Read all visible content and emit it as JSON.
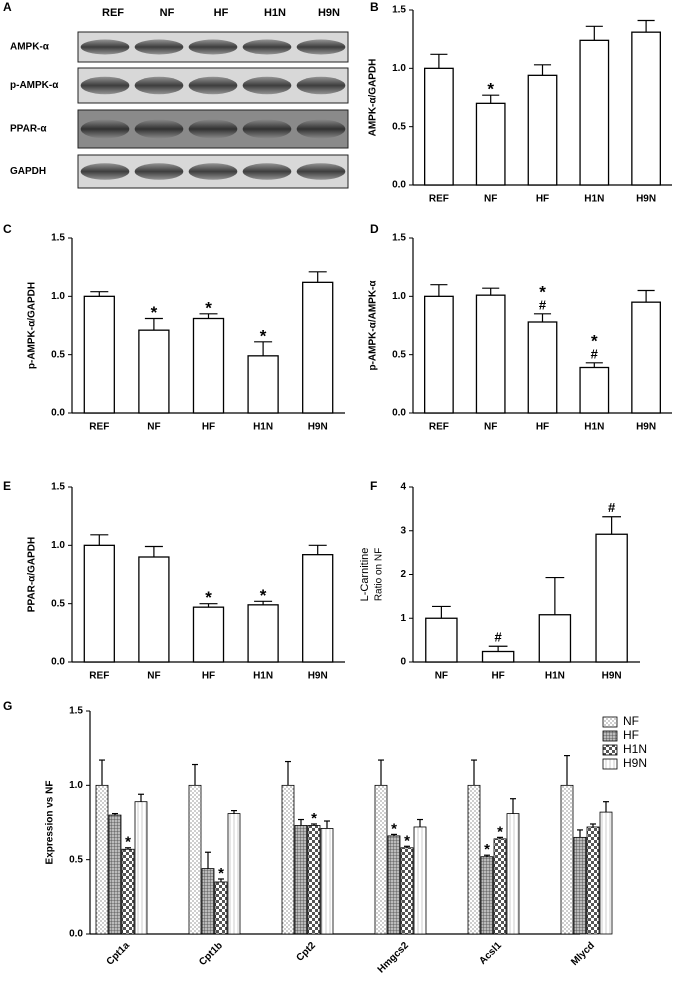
{
  "chart_data": [
    {
      "type": "blot",
      "panel": "A",
      "categories": [
        "REF",
        "NF",
        "HF",
        "H1N",
        "H9N"
      ],
      "bands": [
        "AMPK-α",
        "p-AMPK-α",
        "PPAR-α",
        "GAPDH"
      ]
    },
    {
      "type": "bar",
      "panel": "B",
      "ylabel": "AMPK-α/GAPDH",
      "categories": [
        "REF",
        "NF",
        "HF",
        "H1N",
        "H9N"
      ],
      "values": [
        1.0,
        0.7,
        0.94,
        1.24,
        1.31
      ],
      "errors": [
        0.12,
        0.07,
        0.09,
        0.12,
        0.1
      ],
      "annotations": [
        null,
        [
          "*"
        ],
        null,
        null,
        null
      ],
      "ylim": [
        0,
        1.5
      ],
      "yticks": [
        {
          "value": 0,
          "label": "0.0"
        },
        0.5,
        {
          "value": 1,
          "label": "1.0"
        },
        1.5
      ]
    },
    {
      "type": "bar",
      "panel": "C",
      "ylabel": "p-AMPK-α/GAPDH",
      "categories": [
        "REF",
        "NF",
        "HF",
        "H1N",
        "H9N"
      ],
      "values": [
        1.0,
        0.71,
        0.81,
        0.49,
        1.12
      ],
      "errors": [
        0.04,
        0.1,
        0.04,
        0.12,
        0.09
      ],
      "annotations": [
        null,
        [
          "*"
        ],
        [
          "*"
        ],
        [
          "*"
        ],
        null
      ],
      "ylim": [
        0,
        1.5
      ],
      "yticks": [
        {
          "value": 0,
          "label": "0.0"
        },
        0.5,
        {
          "value": 1,
          "label": "1.0"
        },
        1.5
      ]
    },
    {
      "type": "bar",
      "panel": "D",
      "ylabel": "p-AMPK-α/AMPK-α",
      "categories": [
        "REF",
        "NF",
        "HF",
        "H1N",
        "H9N"
      ],
      "values": [
        1.0,
        1.01,
        0.78,
        0.39,
        0.95
      ],
      "errors": [
        0.1,
        0.06,
        0.07,
        0.04,
        0.1
      ],
      "annotations": [
        null,
        null,
        [
          "*",
          "#"
        ],
        [
          "*",
          "#"
        ],
        null
      ],
      "ylim": [
        0,
        1.5
      ],
      "yticks": [
        {
          "value": 0,
          "label": "0.0"
        },
        0.5,
        {
          "value": 1,
          "label": "1.0"
        },
        1.5
      ]
    },
    {
      "type": "bar",
      "panel": "E",
      "ylabel": "PPAR-α/GAPDH",
      "categories": [
        "REF",
        "NF",
        "HF",
        "H1N",
        "H9N"
      ],
      "values": [
        1.0,
        0.9,
        0.47,
        0.49,
        0.92
      ],
      "errors": [
        0.09,
        0.09,
        0.03,
        0.03,
        0.08
      ],
      "annotations": [
        null,
        null,
        [
          "*"
        ],
        [
          "*"
        ],
        null
      ],
      "ylim": [
        0,
        1.5
      ],
      "yticks": [
        {
          "value": 0,
          "label": "0.0"
        },
        0.5,
        {
          "value": 1,
          "label": "1.0"
        },
        1.5
      ]
    },
    {
      "type": "bar",
      "panel": "F",
      "ylabel": [
        "L-Carnitine",
        "Ratio on NF"
      ],
      "categories": [
        "NF",
        "HF",
        "H1N",
        "H9N"
      ],
      "values": [
        1.0,
        0.24,
        1.08,
        2.92
      ],
      "errors": [
        0.27,
        0.12,
        0.85,
        0.4
      ],
      "annotations": [
        null,
        [
          "#"
        ],
        null,
        [
          "#"
        ]
      ],
      "ylim": [
        0,
        4
      ],
      "yticks": [
        0,
        1,
        2,
        3,
        4
      ]
    },
    {
      "type": "grouped_bar",
      "panel": "G",
      "ylabel": "Expression vs NF",
      "categories": [
        "Cpt1a",
        "Cpt1b",
        "Cpt2",
        "Hmgcs2",
        "Acsl1",
        "Mlycd"
      ],
      "legend": "upper right",
      "series": [
        {
          "name": "NF",
          "pattern": "dots",
          "values": [
            1.0,
            1.0,
            1.0,
            1.0,
            1.0,
            1.0
          ],
          "errors": [
            0.17,
            0.14,
            0.16,
            0.17,
            0.17,
            0.2
          ],
          "annotations": [
            null,
            null,
            null,
            null,
            null,
            null
          ]
        },
        {
          "name": "HF",
          "pattern": "grid",
          "values": [
            0.8,
            0.44,
            0.73,
            0.66,
            0.52,
            0.65
          ],
          "errors": [
            0.01,
            0.11,
            0.04,
            0.01,
            0.01,
            0.05
          ],
          "annotations": [
            null,
            null,
            null,
            [
              "*"
            ],
            [
              "*"
            ],
            null
          ]
        },
        {
          "name": "H1N",
          "pattern": "check",
          "values": [
            0.57,
            0.35,
            0.73,
            0.58,
            0.64,
            0.72
          ],
          "errors": [
            0.01,
            0.02,
            0.01,
            0.01,
            0.01,
            0.02
          ],
          "annotations": [
            [
              "*"
            ],
            [
              "*"
            ],
            [
              "*"
            ],
            [
              "*"
            ],
            [
              "*"
            ],
            null
          ]
        },
        {
          "name": "H9N",
          "pattern": "lines",
          "values": [
            0.89,
            0.81,
            0.71,
            0.72,
            0.81,
            0.82
          ],
          "errors": [
            0.05,
            0.02,
            0.05,
            0.05,
            0.1,
            0.07
          ],
          "annotations": [
            null,
            null,
            null,
            null,
            null,
            null
          ]
        }
      ],
      "ylim": [
        0.0,
        1.5
      ],
      "yticks": [
        {
          "value": 0,
          "label": "0.0"
        },
        0.5,
        {
          "value": 1,
          "label": "1.0"
        },
        1.5
      ]
    }
  ]
}
